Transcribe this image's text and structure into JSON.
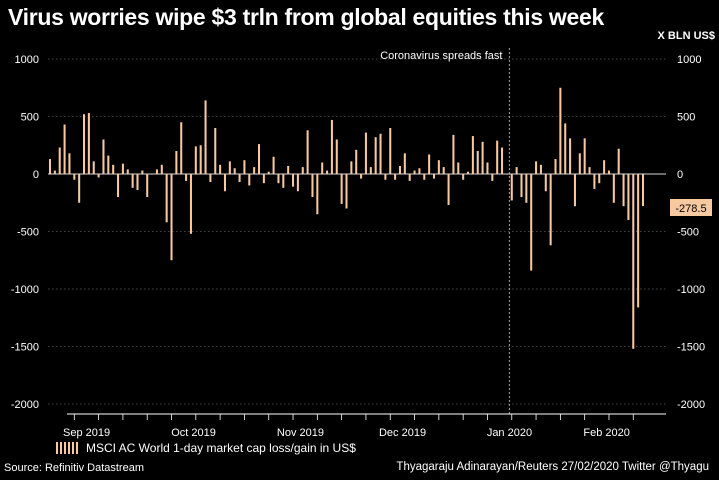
{
  "title": "Virus worries wipe $3 trln from global equities this week",
  "source": "Source: Refinitiv Datastream",
  "credit": "Thyagaraju Adinarayan/Reuters 27/02/2020 Twitter @Thyagu",
  "legend_label": "MSCI AC World 1-day market cap loss/gain in US$",
  "colors": {
    "bar": "#f6c9a0",
    "grid": "#5a5a5a",
    "zero": "#d9d9d9",
    "callout": "#f6c9a0"
  },
  "chart_data": {
    "type": "bar",
    "title": "Virus worries wipe $3 trln from global equities this week",
    "ylabel": "X BLN US$",
    "ylim": [
      -2000,
      1000
    ],
    "yticks": [
      1000,
      500,
      0,
      -500,
      -1000,
      -1500,
      -2000
    ],
    "x_tick_labels": [
      "Sep 2019",
      "Oct 2019",
      "Nov 2019",
      "Dec 2019",
      "Jan 2020",
      "Feb 2020"
    ],
    "x_tick_positions": [
      3,
      25,
      47,
      68,
      90,
      110
    ],
    "annotation": {
      "label": "Coronavirus spreads fast",
      "at_index": 94.5
    },
    "last_value_label": "-278.5",
    "grid": true,
    "series": [
      {
        "name": "MSCI AC World 1-day market cap loss/gain in US$",
        "values": [
          130,
          30,
          230,
          430,
          180,
          -50,
          -250,
          520,
          530,
          110,
          -30,
          300,
          160,
          80,
          -200,
          90,
          40,
          -120,
          -140,
          30,
          -200,
          0,
          40,
          80,
          -420,
          -750,
          200,
          450,
          -60,
          -520,
          240,
          250,
          640,
          -70,
          400,
          80,
          -150,
          110,
          50,
          -70,
          120,
          -100,
          60,
          260,
          -80,
          20,
          150,
          -80,
          -120,
          70,
          -110,
          -150,
          60,
          380,
          -200,
          -350,
          100,
          30,
          470,
          300,
          -260,
          -300,
          110,
          210,
          -40,
          360,
          60,
          320,
          350,
          -50,
          400,
          -50,
          70,
          180,
          -60,
          30,
          50,
          -50,
          170,
          -40,
          120,
          60,
          -270,
          340,
          100,
          -50,
          20,
          330,
          200,
          280,
          100,
          -60,
          290,
          230,
          0,
          -230,
          60,
          -200,
          -250,
          -840,
          110,
          80,
          -150,
          -620,
          130,
          750,
          440,
          310,
          -280,
          180,
          310,
          60,
          -130,
          -80,
          120,
          30,
          -250,
          220,
          -280,
          -400,
          -1520,
          -1160,
          -278.5
        ]
      }
    ]
  }
}
